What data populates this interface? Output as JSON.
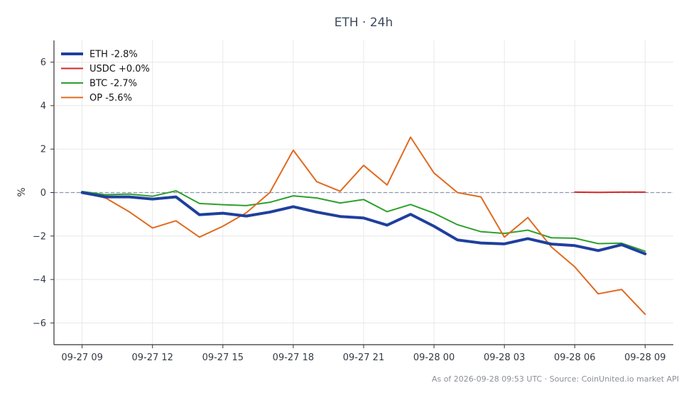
{
  "chart_data": {
    "type": "line",
    "title": "ETH · 24h",
    "ylabel": "%",
    "xlabel": "",
    "x": [
      0,
      1,
      2,
      3,
      4,
      5,
      6,
      7,
      8,
      9,
      10,
      11,
      12,
      13,
      14,
      15,
      16,
      17,
      18,
      19,
      20,
      21,
      22,
      23,
      24
    ],
    "xticks": [
      {
        "x": 0,
        "label": "09-27 09"
      },
      {
        "x": 3,
        "label": "09-27 12"
      },
      {
        "x": 6,
        "label": "09-27 15"
      },
      {
        "x": 9,
        "label": "09-27 18"
      },
      {
        "x": 12,
        "label": "09-27 21"
      },
      {
        "x": 15,
        "label": "09-28 00"
      },
      {
        "x": 18,
        "label": "09-28 03"
      },
      {
        "x": 21,
        "label": "09-28 06"
      },
      {
        "x": 24,
        "label": "09-28 09"
      }
    ],
    "yticks": [
      6,
      4,
      2,
      0,
      -2,
      -4,
      -6
    ],
    "ytick_labels": [
      "6",
      "4",
      "2",
      "0",
      "−2",
      "−4",
      "−6"
    ],
    "xlim": [
      -1.2,
      25.2
    ],
    "ylim": [
      -7,
      7
    ],
    "grid": true,
    "zero_line": true,
    "legend_position": "top-left",
    "series": [
      {
        "name": "ETH -2.8%",
        "color": "#1f3f9e",
        "width": 4,
        "values": [
          0.0,
          -0.2,
          -0.2,
          -0.3,
          -0.2,
          -1.02,
          -0.95,
          -1.08,
          -0.9,
          -0.65,
          -0.9,
          -1.1,
          -1.17,
          -1.5,
          -1.0,
          -1.55,
          -2.18,
          -2.32,
          -2.36,
          -2.12,
          -2.37,
          -2.44,
          -2.67,
          -2.4,
          -2.82
        ]
      },
      {
        "name": "USDC +0.0%",
        "color": "#d62728",
        "width": 2,
        "values": [
          null,
          null,
          null,
          null,
          null,
          null,
          null,
          null,
          null,
          null,
          null,
          null,
          null,
          null,
          null,
          null,
          null,
          null,
          null,
          null,
          null,
          0.02,
          0.01,
          0.02,
          0.02
        ]
      },
      {
        "name": "BTC -2.7%",
        "color": "#2ca02c",
        "width": 2,
        "values": [
          0.05,
          -0.1,
          -0.07,
          -0.17,
          0.08,
          -0.5,
          -0.56,
          -0.6,
          -0.45,
          -0.15,
          -0.25,
          -0.48,
          -0.32,
          -0.88,
          -0.55,
          -0.95,
          -1.48,
          -1.8,
          -1.88,
          -1.73,
          -2.08,
          -2.1,
          -2.35,
          -2.33,
          -2.7
        ]
      },
      {
        "name": "OP -5.6%",
        "color": "#e06a1f",
        "width": 2,
        "values": [
          0.0,
          -0.25,
          -0.88,
          -1.63,
          -1.3,
          -2.05,
          -1.55,
          -0.93,
          0.0,
          1.95,
          0.5,
          0.06,
          1.25,
          0.35,
          2.55,
          0.9,
          0.0,
          -0.2,
          -2.05,
          -1.15,
          -2.5,
          -3.42,
          -4.66,
          -4.46,
          -5.6
        ]
      }
    ]
  },
  "footer": "As of 2026-09-28 09:53 UTC · Source: CoinUnited.io market API"
}
